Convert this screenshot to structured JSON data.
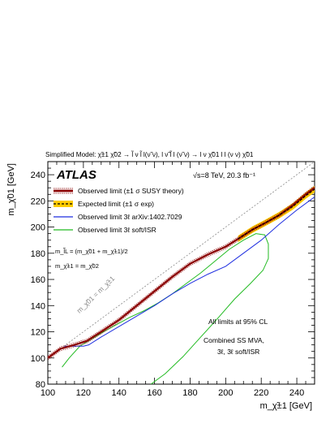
{
  "chart_data": {
    "type": "line",
    "title": "Simplified Model: χ̃±1 χ̃02 → l̃ ν l̃ l(ν̃ ν), l ν̃ l̃ l (ν̃ ν) → l ν χ̃01 l l (ν ν) χ̃01",
    "experiment_label": "ATLAS",
    "energy_label": "√s=8 TeV, 20.3 fb⁻¹",
    "xlabel": "m_χ̃±1 [GeV]",
    "ylabel": "m_χ̃01 [GeV]",
    "xlim": [
      100,
      250
    ],
    "ylim": [
      80,
      250
    ],
    "xticks": [
      100,
      120,
      140,
      160,
      180,
      200,
      220,
      240
    ],
    "yticks": [
      80,
      100,
      120,
      140,
      160,
      180,
      200,
      220,
      240
    ],
    "grid": false,
    "legend_position": "top-left",
    "legend": [
      {
        "label": "Observed limit (±1 σ SUSY theory)",
        "style": "observed"
      },
      {
        "label": "Expected limit (±1 σ exp)",
        "style": "expected"
      },
      {
        "label": "Observed limit 3ℓ  arXiv:1402.7029",
        "style": "blue"
      },
      {
        "label": "Observed limit 3ℓ soft/ISR",
        "style": "green"
      }
    ],
    "mass_relations": [
      "m_l̃L = (m_χ̃01 + m_χ̃±1)/2",
      "m_χ̃±1 = m_χ̃02"
    ],
    "diagonal_label": "m_χ̃01 = m_χ̃±1",
    "annotations": [
      "All limits at 95% CL",
      "Combined SS MVA,",
      "3ℓ, 3ℓ soft/ISR"
    ],
    "colors": {
      "observed": "#8b0000",
      "expected_band": "#ffcc00",
      "blue": "#1f2fe0",
      "green": "#22bb22",
      "diagonal": "#888888"
    },
    "series": [
      {
        "name": "Observed limit",
        "x": [
          100,
          107,
          115,
          122,
          130,
          140,
          150,
          160,
          170,
          180,
          190,
          200,
          207,
          215,
          222,
          230,
          238,
          245,
          250
        ],
        "y": [
          100,
          107,
          110,
          113,
          120,
          129,
          140,
          151,
          162,
          172,
          179,
          185,
          191,
          198,
          203,
          209,
          217,
          225,
          230
        ]
      },
      {
        "name": "Expected limit",
        "x": [
          207,
          215,
          222,
          230,
          238,
          245,
          250
        ],
        "y": [
          191,
          198,
          203,
          209,
          216,
          224,
          229
        ]
      },
      {
        "name": "Observed limit 3ℓ",
        "x": [
          106,
          110,
          115,
          120,
          123,
          130,
          140,
          150,
          160,
          170,
          180,
          190,
          200,
          210,
          220,
          230,
          240,
          250
        ],
        "y": [
          106,
          109,
          109,
          109,
          110,
          116,
          124,
          132,
          140,
          149,
          157,
          164,
          170,
          180,
          190,
          202,
          213,
          223
        ]
      },
      {
        "name": "Observed limit 3ℓ soft/ISR",
        "x": [
          108,
          112,
          118,
          124,
          130,
          138,
          146,
          154,
          162,
          170,
          178,
          186,
          194,
          202,
          210,
          217,
          222,
          224,
          224,
          221,
          214,
          205,
          196,
          186,
          176,
          166,
          158
        ],
        "y": [
          93,
          100,
          109,
          114,
          119,
          125,
          131,
          136,
          142,
          149,
          157,
          165,
          174,
          183,
          190,
          195,
          194,
          187,
          176,
          167,
          157,
          145,
          131,
          116,
          101,
          88,
          80
        ]
      }
    ]
  }
}
